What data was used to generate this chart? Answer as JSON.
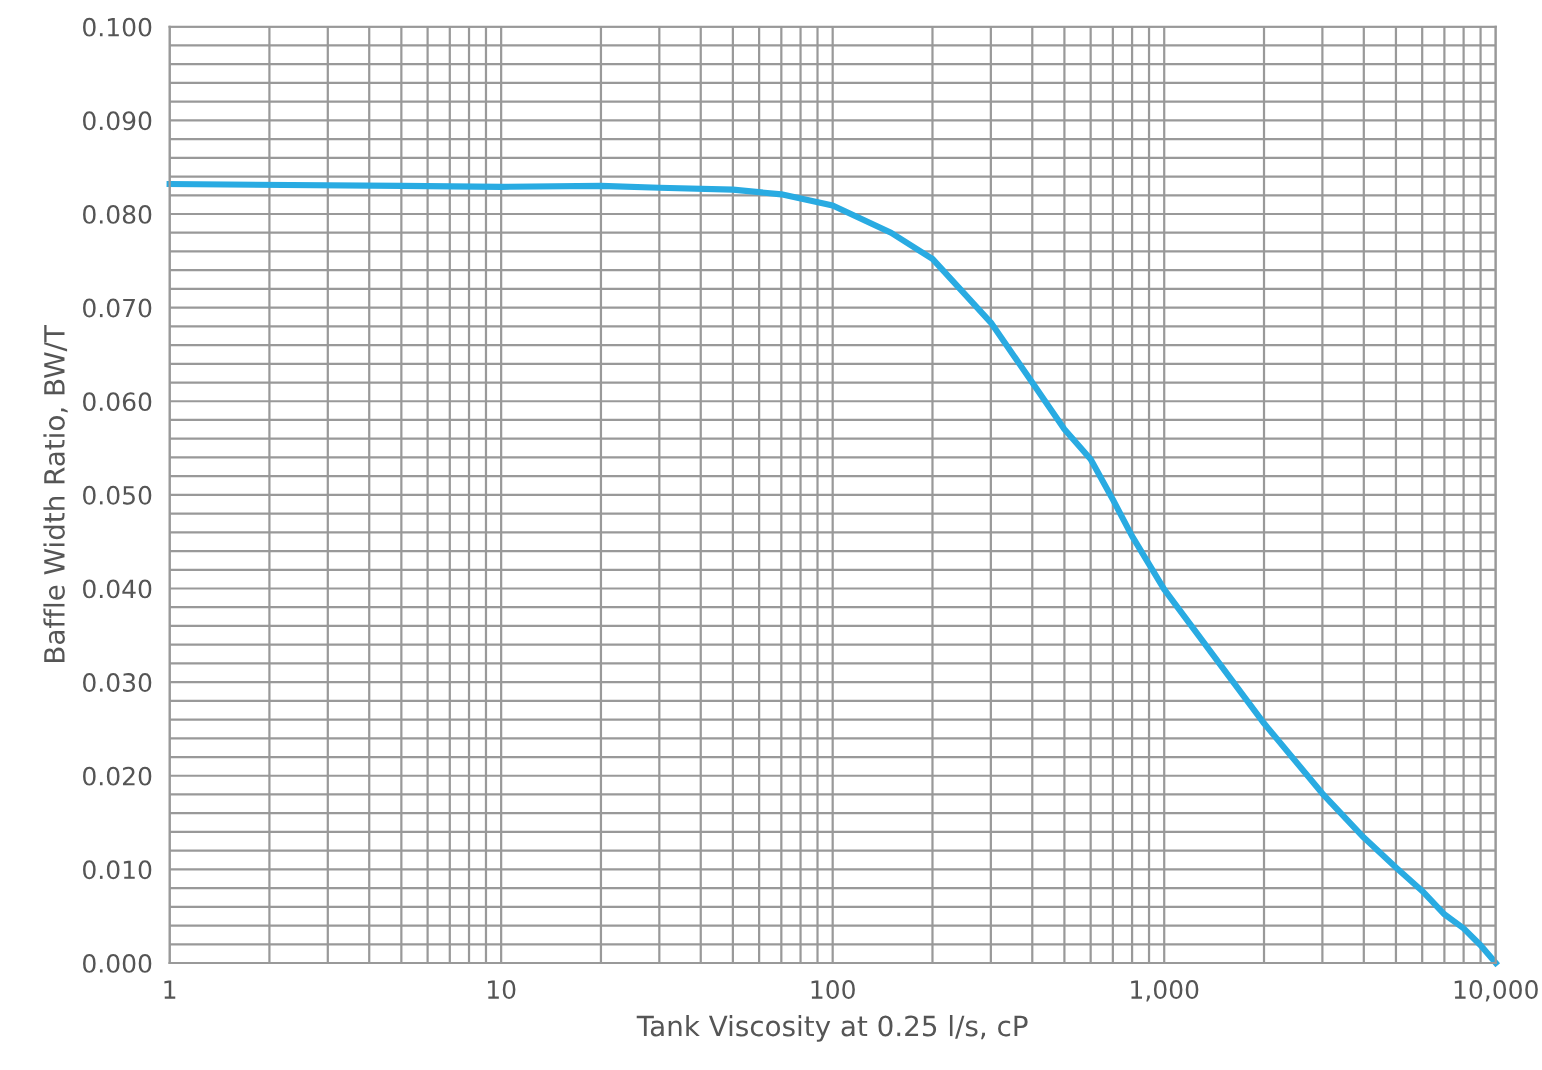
{
  "chart_data": {
    "type": "line",
    "xlabel": "Tank Viscosity at 0.25 l/s, cP",
    "ylabel": "Baffle Width Ratio, BW/T",
    "log": "x",
    "grid": true,
    "marker": "none",
    "line_style": "solid",
    "xlim": [
      1,
      10000
    ],
    "ylim": [
      0,
      0.1
    ],
    "xticks": [
      1,
      {
        "value": 2,
        "label": null
      },
      {
        "value": 3,
        "label": null
      },
      {
        "value": 4,
        "label": null
      },
      {
        "value": 5,
        "label": null
      },
      {
        "value": 6,
        "label": null
      },
      {
        "value": 7,
        "label": null
      },
      {
        "value": 8,
        "label": null
      },
      {
        "value": 9,
        "label": null
      },
      10,
      {
        "value": 20,
        "label": null
      },
      {
        "value": 30,
        "label": null
      },
      {
        "value": 40,
        "label": null
      },
      {
        "value": 50,
        "label": null
      },
      {
        "value": 60,
        "label": null
      },
      {
        "value": 70,
        "label": null
      },
      {
        "value": 80,
        "label": null
      },
      {
        "value": 90,
        "label": null
      },
      100,
      {
        "value": 200,
        "label": null
      },
      {
        "value": 300,
        "label": null
      },
      {
        "value": 400,
        "label": null
      },
      {
        "value": 500,
        "label": null
      },
      {
        "value": 600,
        "label": null
      },
      {
        "value": 700,
        "label": null
      },
      {
        "value": 800,
        "label": null
      },
      {
        "value": 900,
        "label": null
      },
      {
        "value": 1000,
        "label": "1,000"
      },
      {
        "value": 2000,
        "label": null
      },
      {
        "value": 3000,
        "label": null
      },
      {
        "value": 4000,
        "label": null
      },
      {
        "value": 5000,
        "label": null
      },
      {
        "value": 6000,
        "label": null
      },
      {
        "value": 7000,
        "label": null
      },
      {
        "value": 8000,
        "label": null
      },
      {
        "value": 9000,
        "label": null
      },
      {
        "value": 10000,
        "label": "10,000"
      }
    ],
    "yticks": [
      {
        "value": 0,
        "label": "0.000"
      },
      {
        "value": 0.002,
        "label": null
      },
      {
        "value": 0.004,
        "label": null
      },
      {
        "value": 0.006,
        "label": null
      },
      {
        "value": 0.008,
        "label": null
      },
      {
        "value": 0.01,
        "label": "0.010"
      },
      {
        "value": 0.012,
        "label": null
      },
      {
        "value": 0.014,
        "label": null
      },
      {
        "value": 0.016,
        "label": null
      },
      {
        "value": 0.018,
        "label": null
      },
      {
        "value": 0.02,
        "label": "0.020"
      },
      {
        "value": 0.022,
        "label": null
      },
      {
        "value": 0.024,
        "label": null
      },
      {
        "value": 0.026,
        "label": null
      },
      {
        "value": 0.028,
        "label": null
      },
      {
        "value": 0.03,
        "label": "0.030"
      },
      {
        "value": 0.032,
        "label": null
      },
      {
        "value": 0.034,
        "label": null
      },
      {
        "value": 0.036,
        "label": null
      },
      {
        "value": 0.038,
        "label": null
      },
      {
        "value": 0.04,
        "label": "0.040"
      },
      {
        "value": 0.042,
        "label": null
      },
      {
        "value": 0.044,
        "label": null
      },
      {
        "value": 0.046,
        "label": null
      },
      {
        "value": 0.048,
        "label": null
      },
      {
        "value": 0.05,
        "label": "0.050"
      },
      {
        "value": 0.052,
        "label": null
      },
      {
        "value": 0.054,
        "label": null
      },
      {
        "value": 0.056,
        "label": null
      },
      {
        "value": 0.058,
        "label": null
      },
      {
        "value": 0.06,
        "label": "0.060"
      },
      {
        "value": 0.062,
        "label": null
      },
      {
        "value": 0.064,
        "label": null
      },
      {
        "value": 0.066,
        "label": null
      },
      {
        "value": 0.068,
        "label": null
      },
      {
        "value": 0.07,
        "label": "0.070"
      },
      {
        "value": 0.072,
        "label": null
      },
      {
        "value": 0.074,
        "label": null
      },
      {
        "value": 0.076,
        "label": null
      },
      {
        "value": 0.078,
        "label": null
      },
      {
        "value": 0.08,
        "label": "0.080"
      },
      {
        "value": 0.082,
        "label": null
      },
      {
        "value": 0.084,
        "label": null
      },
      {
        "value": 0.086,
        "label": null
      },
      {
        "value": 0.088,
        "label": null
      },
      {
        "value": 0.09,
        "label": "0.090"
      },
      {
        "value": 0.092,
        "label": null
      },
      {
        "value": 0.094,
        "label": null
      },
      {
        "value": 0.096,
        "label": null
      },
      {
        "value": 0.098,
        "label": null
      },
      {
        "value": 0.1,
        "label": "0.100"
      }
    ],
    "series": [
      {
        "color": "#29abe2",
        "x": [
          1,
          5,
          10,
          20,
          30,
          50,
          70,
          100,
          150,
          200,
          300,
          400,
          500,
          600,
          700,
          800,
          1000,
          2000,
          3000,
          4000,
          5000,
          6000,
          7000,
          8000,
          9000,
          10000
        ],
        "values": [
          0.0832,
          0.083,
          0.0829,
          0.083,
          0.0828,
          0.0826,
          0.0821,
          0.0809,
          0.078,
          0.0752,
          0.0684,
          0.062,
          0.057,
          0.0538,
          0.0495,
          0.0456,
          0.0399,
          0.0256,
          0.0181,
          0.0134,
          0.0102,
          0.0077,
          0.0052,
          0.0037,
          0.0019,
          0.0
        ]
      }
    ]
  }
}
